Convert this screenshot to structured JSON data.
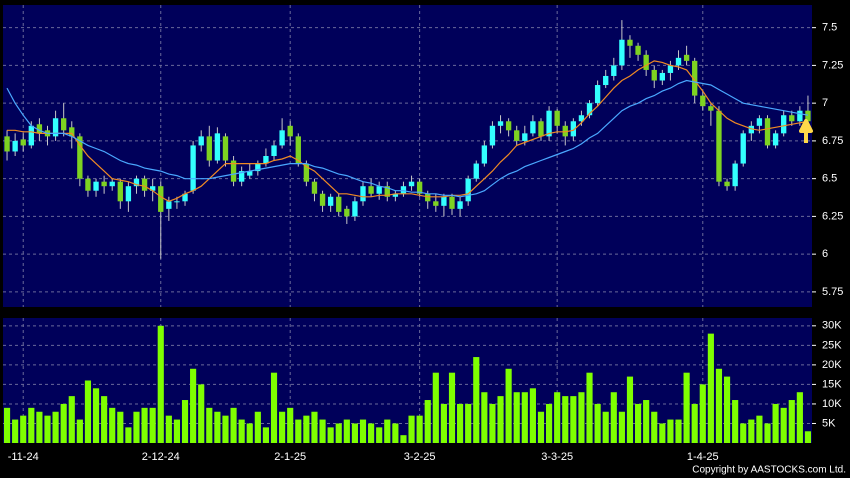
{
  "chart_data": [
    {
      "type": "candlestick",
      "categories": [
        null,
        null,
        "-11-24",
        null,
        null,
        null,
        null,
        null,
        null,
        null,
        null,
        null,
        null,
        null,
        null,
        null,
        null,
        null,
        null,
        "2-12-24",
        null,
        null,
        null,
        null,
        null,
        null,
        null,
        null,
        null,
        null,
        null,
        null,
        null,
        null,
        null,
        "2-1-25",
        null,
        null,
        null,
        null,
        null,
        null,
        null,
        null,
        null,
        null,
        null,
        null,
        null,
        null,
        null,
        "3-2-25",
        null,
        null,
        null,
        null,
        null,
        null,
        null,
        null,
        null,
        null,
        null,
        null,
        null,
        null,
        null,
        null,
        "3-3-25",
        null,
        null,
        null,
        null,
        null,
        null,
        null,
        null,
        null,
        null,
        null,
        null,
        null,
        null,
        null,
        null,
        null,
        "1-4-25",
        null,
        null,
        null,
        null,
        null,
        null,
        null,
        null,
        null,
        null,
        null,
        null,
        null
      ],
      "open": [
        6.78,
        6.68,
        6.76,
        6.72,
        6.86,
        6.82,
        6.78,
        6.9,
        6.84,
        6.78,
        6.5,
        6.42,
        6.48,
        6.45,
        6.48,
        6.35,
        6.45,
        6.5,
        6.42,
        6.45,
        6.3,
        6.35,
        6.35,
        6.42,
        6.72,
        6.78,
        6.62,
        6.78,
        6.62,
        6.48,
        6.52,
        6.55,
        6.6,
        6.65,
        6.72,
        6.85,
        6.78,
        6.6,
        6.48,
        6.4,
        6.32,
        6.38,
        6.3,
        6.25,
        6.35,
        6.45,
        6.4,
        6.45,
        6.38,
        6.4,
        6.45,
        6.48,
        6.4,
        6.35,
        6.32,
        6.38,
        6.3,
        6.35,
        6.5,
        6.6,
        6.72,
        6.85,
        6.88,
        6.82,
        6.75,
        6.8,
        6.88,
        6.78,
        6.95,
        6.85,
        6.78,
        6.88,
        6.92,
        7.0,
        7.12,
        7.18,
        7.25,
        7.42,
        7.38,
        7.32,
        7.22,
        7.15,
        7.2,
        7.25,
        7.32,
        7.28,
        7.05,
        6.98,
        6.95,
        6.48,
        6.45,
        6.6,
        6.8,
        6.85,
        6.9,
        6.72,
        6.8,
        6.92,
        6.88,
        6.95
      ],
      "high": [
        6.82,
        6.8,
        6.8,
        6.88,
        6.9,
        6.85,
        6.95,
        7.0,
        6.88,
        6.8,
        6.52,
        6.5,
        6.52,
        6.5,
        6.5,
        6.48,
        6.52,
        6.52,
        6.5,
        6.48,
        6.38,
        6.38,
        6.42,
        6.75,
        6.82,
        6.85,
        6.84,
        6.8,
        6.65,
        6.58,
        6.6,
        6.62,
        6.7,
        6.75,
        6.9,
        6.88,
        6.8,
        6.62,
        6.5,
        6.42,
        6.4,
        6.4,
        6.32,
        6.38,
        6.48,
        6.5,
        6.48,
        6.48,
        6.42,
        6.48,
        6.52,
        6.5,
        6.42,
        6.4,
        6.4,
        6.4,
        6.38,
        6.52,
        6.62,
        6.75,
        6.88,
        6.92,
        6.9,
        6.85,
        6.85,
        6.92,
        6.9,
        6.98,
        6.96,
        6.88,
        6.9,
        6.95,
        7.02,
        7.15,
        7.22,
        7.3,
        7.55,
        7.45,
        7.4,
        7.35,
        7.25,
        7.22,
        7.28,
        7.35,
        7.38,
        7.3,
        7.08,
        7.0,
        6.98,
        6.5,
        6.62,
        6.82,
        6.88,
        6.92,
        6.92,
        6.82,
        6.95,
        6.95,
        6.98,
        7.05
      ],
      "low": [
        6.62,
        6.65,
        6.68,
        6.7,
        6.75,
        6.72,
        6.75,
        6.78,
        6.7,
        6.45,
        6.38,
        6.38,
        6.4,
        6.42,
        6.3,
        6.28,
        6.4,
        6.38,
        6.35,
        5.97,
        6.22,
        6.3,
        6.32,
        6.4,
        6.68,
        6.58,
        6.6,
        6.58,
        6.45,
        6.45,
        6.5,
        6.52,
        6.58,
        6.62,
        6.7,
        6.72,
        6.58,
        6.45,
        6.35,
        6.28,
        6.28,
        6.25,
        6.2,
        6.22,
        6.32,
        6.38,
        6.36,
        6.35,
        6.35,
        6.38,
        6.42,
        6.38,
        6.3,
        6.28,
        6.25,
        6.26,
        6.25,
        6.32,
        6.48,
        6.58,
        6.7,
        6.8,
        6.78,
        6.72,
        6.72,
        6.78,
        6.75,
        6.75,
        6.8,
        6.72,
        6.75,
        6.85,
        6.9,
        6.98,
        7.1,
        7.15,
        7.22,
        7.3,
        7.28,
        7.18,
        7.1,
        7.12,
        7.15,
        7.22,
        7.25,
        7.0,
        6.95,
        6.85,
        6.45,
        6.42,
        6.42,
        6.58,
        6.75,
        6.8,
        6.7,
        6.7,
        6.78,
        6.85,
        6.85,
        6.85
      ],
      "close": [
        6.68,
        6.75,
        6.72,
        6.85,
        6.8,
        6.78,
        6.9,
        6.82,
        6.78,
        6.5,
        6.42,
        6.48,
        6.45,
        6.48,
        6.35,
        6.45,
        6.5,
        6.42,
        6.45,
        6.28,
        6.35,
        6.35,
        6.4,
        6.72,
        6.78,
        6.62,
        6.8,
        6.62,
        6.48,
        6.55,
        6.55,
        6.6,
        6.65,
        6.72,
        6.82,
        6.78,
        6.6,
        6.48,
        6.4,
        6.32,
        6.38,
        6.28,
        6.25,
        6.35,
        6.45,
        6.4,
        6.45,
        6.38,
        6.4,
        6.45,
        6.48,
        6.4,
        6.35,
        6.32,
        6.38,
        6.3,
        6.35,
        6.5,
        6.6,
        6.72,
        6.85,
        6.88,
        6.82,
        6.75,
        6.8,
        6.88,
        6.78,
        6.95,
        6.85,
        6.78,
        6.88,
        6.92,
        7.0,
        7.12,
        7.18,
        7.25,
        7.42,
        7.38,
        7.32,
        7.22,
        7.15,
        7.2,
        7.25,
        7.3,
        7.28,
        7.05,
        6.98,
        6.95,
        6.48,
        6.45,
        6.6,
        6.8,
        6.85,
        6.9,
        6.72,
        6.8,
        6.92,
        6.88,
        6.95,
        6.88
      ],
      "up_color": "#33ffff",
      "down_color": "#7ed321",
      "series": [
        {
          "color": "#f08a24",
          "values": [
            6.82,
            6.82,
            6.81,
            6.81,
            6.8,
            6.8,
            6.8,
            6.8,
            6.8,
            6.72,
            6.65,
            6.6,
            6.55,
            6.5,
            6.49,
            6.48,
            6.46,
            6.45,
            6.42,
            6.38,
            6.35,
            6.37,
            6.4,
            6.42,
            6.45,
            6.5,
            6.55,
            6.6,
            6.6,
            6.6,
            6.6,
            6.6,
            6.6,
            6.62,
            6.63,
            6.65,
            6.62,
            6.58,
            6.55,
            6.5,
            6.45,
            6.4,
            6.4,
            6.39,
            6.38,
            6.38,
            6.39,
            6.39,
            6.4,
            6.4,
            6.4,
            6.39,
            6.38,
            6.38,
            6.38,
            6.39,
            6.39,
            6.4,
            6.45,
            6.5,
            6.55,
            6.61,
            6.66,
            6.72,
            6.74,
            6.76,
            6.78,
            6.8,
            6.81,
            6.81,
            6.82,
            6.87,
            6.93,
            6.98,
            7.04,
            7.1,
            7.15,
            7.18,
            7.22,
            7.25,
            7.28,
            7.27,
            7.25,
            7.24,
            7.22,
            7.15,
            7.08,
            7.0,
            6.95,
            6.9,
            6.87,
            6.85,
            6.83,
            6.82,
            6.83,
            6.84,
            6.85,
            6.86,
            6.87,
            6.88
          ]
        },
        {
          "color": "#4aa8ff",
          "values": [
            7.1,
            7.0,
            6.92,
            6.85,
            6.82,
            6.8,
            6.8,
            6.8,
            6.78,
            6.75,
            6.72,
            6.7,
            6.68,
            6.65,
            6.62,
            6.6,
            6.59,
            6.57,
            6.56,
            6.55,
            6.53,
            6.52,
            6.5,
            6.5,
            6.5,
            6.5,
            6.51,
            6.52,
            6.53,
            6.54,
            6.55,
            6.56,
            6.57,
            6.58,
            6.59,
            6.6,
            6.6,
            6.6,
            6.58,
            6.57,
            6.55,
            6.53,
            6.52,
            6.5,
            6.48,
            6.47,
            6.45,
            6.44,
            6.42,
            6.42,
            6.41,
            6.41,
            6.4,
            6.4,
            6.39,
            6.39,
            6.38,
            6.39,
            6.4,
            6.42,
            6.46,
            6.5,
            6.53,
            6.55,
            6.58,
            6.6,
            6.62,
            6.64,
            6.66,
            6.68,
            6.7,
            6.73,
            6.77,
            6.8,
            6.85,
            6.9,
            6.95,
            6.98,
            7.0,
            7.03,
            7.05,
            7.08,
            7.1,
            7.13,
            7.15,
            7.14,
            7.13,
            7.12,
            7.09,
            7.06,
            7.03,
            7.0,
            6.99,
            6.98,
            6.97,
            6.96,
            6.95,
            6.94,
            6.93,
            6.92
          ]
        }
      ],
      "ylim": [
        5.65,
        7.65
      ],
      "yticks": [
        5.75,
        6,
        6.25,
        6.5,
        6.75,
        7,
        7.25,
        7.5
      ],
      "grid": true
    },
    {
      "type": "bar",
      "values": [
        9000,
        6000,
        7000,
        9000,
        8000,
        7000,
        8000,
        10000,
        12000,
        6000,
        16000,
        14000,
        12000,
        9000,
        8000,
        4000,
        8000,
        9000,
        9000,
        30000,
        7000,
        6000,
        11000,
        19000,
        15000,
        9000,
        8000,
        7000,
        9000,
        6000,
        5000,
        8000,
        4000,
        18000,
        8000,
        9000,
        6000,
        7000,
        8000,
        6000,
        4000,
        5000,
        6000,
        5000,
        6000,
        5000,
        4000,
        6000,
        5000,
        2000,
        7000,
        7000,
        11000,
        18000,
        10000,
        18000,
        10000,
        10000,
        22000,
        13000,
        10000,
        12000,
        19000,
        13000,
        13000,
        14000,
        8000,
        10000,
        13000,
        12000,
        12000,
        13000,
        18000,
        10000,
        8000,
        13000,
        8000,
        17000,
        10000,
        11000,
        8000,
        5000,
        6000,
        6000,
        18000,
        10000,
        15000,
        28000,
        19000,
        17000,
        11000,
        5000,
        6000,
        7000,
        5000,
        10000,
        9000,
        11000,
        13000,
        3000
      ],
      "color": "#7fff00",
      "ylim": [
        0,
        32000
      ],
      "yticks": [
        {
          "value": 5000,
          "label": "5K"
        },
        {
          "value": 10000,
          "label": "10K"
        },
        {
          "value": 15000,
          "label": "15K"
        },
        {
          "value": 20000,
          "label": "20K"
        },
        {
          "value": 25000,
          "label": "25K"
        },
        {
          "value": 30000,
          "label": "30K"
        }
      ],
      "grid": true,
      "copyright": "Copyright by AASTOCKS.com Ltd."
    }
  ]
}
